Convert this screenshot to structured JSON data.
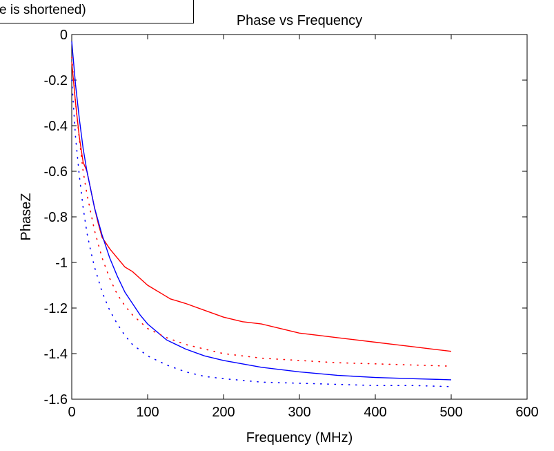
{
  "legend": {
    "text": "e is shortened)"
  },
  "chart_data": {
    "type": "line",
    "title": "Phase vs Frequency",
    "xlabel": "Frequency (MHz)",
    "ylabel": "PhaseZ",
    "xlim": [
      0,
      600
    ],
    "ylim": [
      -1.6,
      0
    ],
    "xticks": [
      0,
      100,
      200,
      300,
      400,
      500,
      600
    ],
    "yticks": [
      0,
      -0.2,
      -0.4,
      -0.6,
      -0.8,
      -1,
      -1.2,
      -1.4,
      -1.6
    ],
    "xtick_labels": [
      "0",
      "100",
      "200",
      "300",
      "400",
      "500",
      "600"
    ],
    "ytick_labels": [
      "0",
      "-0.2",
      "-0.4",
      "-0.6",
      "-0.8",
      "-1",
      "-1.2",
      "-1.4",
      "-1.6"
    ],
    "grid": false,
    "series": [
      {
        "color": "#ff0000",
        "style": "solid",
        "x": [
          0,
          5,
          10,
          15,
          20,
          25,
          30,
          35,
          40,
          50,
          60,
          70,
          80,
          90,
          100,
          110,
          120,
          130,
          140,
          150,
          175,
          200,
          225,
          250,
          275,
          300,
          325,
          350,
          375,
          400,
          425,
          450,
          475,
          500
        ],
        "y": [
          -0.12,
          -0.3,
          -0.45,
          -0.56,
          -0.6,
          -0.68,
          -0.76,
          -0.83,
          -0.89,
          -0.94,
          -0.98,
          -1.02,
          -1.04,
          -1.07,
          -1.1,
          -1.12,
          -1.14,
          -1.16,
          -1.17,
          -1.18,
          -1.21,
          -1.24,
          -1.26,
          -1.27,
          -1.29,
          -1.31,
          -1.32,
          -1.33,
          -1.34,
          -1.35,
          -1.36,
          -1.37,
          -1.38,
          -1.39
        ]
      },
      {
        "color": "#0000ff",
        "style": "solid",
        "x": [
          0,
          5,
          10,
          15,
          20,
          25,
          30,
          40,
          50,
          60,
          70,
          80,
          90,
          100,
          125,
          150,
          175,
          200,
          250,
          300,
          350,
          400,
          450,
          500
        ],
        "y": [
          -0.03,
          -0.22,
          -0.37,
          -0.5,
          -0.6,
          -0.68,
          -0.76,
          -0.88,
          -0.98,
          -1.06,
          -1.13,
          -1.18,
          -1.23,
          -1.27,
          -1.34,
          -1.38,
          -1.41,
          -1.43,
          -1.46,
          -1.48,
          -1.495,
          -1.505,
          -1.51,
          -1.515
        ]
      },
      {
        "color": "#ff0000",
        "style": "dotted",
        "x": [
          0,
          5,
          10,
          15,
          20,
          25,
          30,
          40,
          50,
          60,
          70,
          80,
          100,
          125,
          150,
          175,
          200,
          250,
          300,
          350,
          400,
          450,
          500
        ],
        "y": [
          -0.1,
          -0.3,
          -0.46,
          -0.6,
          -0.7,
          -0.78,
          -0.86,
          -0.98,
          -1.07,
          -1.14,
          -1.19,
          -1.23,
          -1.29,
          -1.33,
          -1.36,
          -1.38,
          -1.4,
          -1.42,
          -1.43,
          -1.44,
          -1.445,
          -1.45,
          -1.455
        ]
      },
      {
        "color": "#0000ff",
        "style": "dotted",
        "x": [
          0,
          5,
          10,
          15,
          20,
          25,
          30,
          40,
          50,
          60,
          70,
          80,
          100,
          125,
          150,
          175,
          200,
          250,
          300,
          350,
          400,
          450,
          500
        ],
        "y": [
          -0.2,
          -0.45,
          -0.62,
          -0.76,
          -0.87,
          -0.95,
          -1.02,
          -1.13,
          -1.21,
          -1.27,
          -1.32,
          -1.36,
          -1.41,
          -1.45,
          -1.48,
          -1.5,
          -1.51,
          -1.525,
          -1.53,
          -1.535,
          -1.54,
          -1.54,
          -1.545
        ]
      }
    ]
  }
}
